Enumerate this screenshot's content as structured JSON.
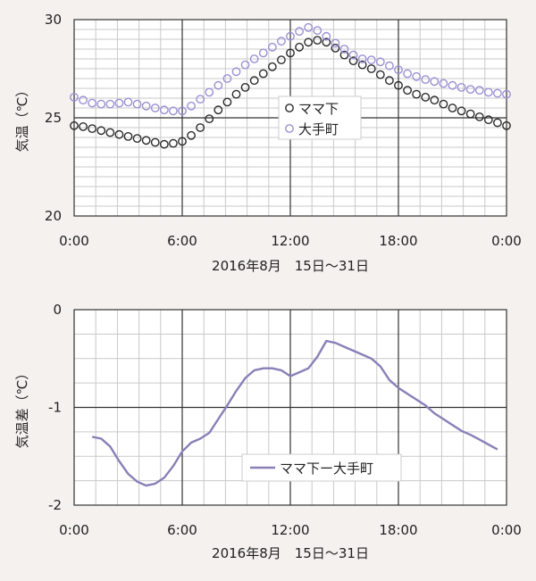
{
  "chart_data": [
    {
      "type": "scatter",
      "xlabel": "2016年8月　15日～31日",
      "ylabel": "気温（℃）",
      "xticks": [
        "0:00",
        "6:00",
        "12:00",
        "18:00",
        "0:00"
      ],
      "xlim": [
        0,
        24
      ],
      "ylim": [
        20,
        30
      ],
      "yticks": [
        20,
        25,
        30
      ],
      "grid": true,
      "legend": "center-right",
      "series": [
        {
          "name": "ママ下",
          "color": "#2a2a2a",
          "x": [
            0,
            0.5,
            1,
            1.5,
            2,
            2.5,
            3,
            3.5,
            4,
            4.5,
            5,
            5.5,
            6,
            6.5,
            7,
            7.5,
            8,
            8.5,
            9,
            9.5,
            10,
            10.5,
            11,
            11.5,
            12,
            12.5,
            13,
            13.5,
            14,
            14.5,
            15,
            15.5,
            16,
            16.5,
            17,
            17.5,
            18,
            18.5,
            19,
            19.5,
            20,
            20.5,
            21,
            21.5,
            22,
            22.5,
            23,
            23.5,
            24
          ],
          "y": [
            24.6,
            24.55,
            24.45,
            24.35,
            24.25,
            24.15,
            24.05,
            23.95,
            23.85,
            23.75,
            23.65,
            23.7,
            23.8,
            24.1,
            24.5,
            24.95,
            25.4,
            25.8,
            26.2,
            26.55,
            26.9,
            27.25,
            27.6,
            27.95,
            28.3,
            28.6,
            28.85,
            28.95,
            28.85,
            28.55,
            28.2,
            27.9,
            27.7,
            27.5,
            27.2,
            26.9,
            26.65,
            26.4,
            26.2,
            26.05,
            25.9,
            25.7,
            25.5,
            25.35,
            25.2,
            25.05,
            24.9,
            24.75,
            24.6
          ]
        },
        {
          "name": "大手町",
          "color": "#9b8fd4",
          "x": [
            0,
            0.5,
            1,
            1.5,
            2,
            2.5,
            3,
            3.5,
            4,
            4.5,
            5,
            5.5,
            6,
            6.5,
            7,
            7.5,
            8,
            8.5,
            9,
            9.5,
            10,
            10.5,
            11,
            11.5,
            12,
            12.5,
            13,
            13.5,
            14,
            14.5,
            15,
            15.5,
            16,
            16.5,
            17,
            17.5,
            18,
            18.5,
            19,
            19.5,
            20,
            20.5,
            21,
            21.5,
            22,
            22.5,
            23,
            23.5,
            24
          ],
          "y": [
            26.05,
            25.9,
            25.75,
            25.7,
            25.7,
            25.75,
            25.8,
            25.7,
            25.6,
            25.5,
            25.4,
            25.35,
            25.35,
            25.6,
            25.95,
            26.3,
            26.65,
            27.0,
            27.35,
            27.7,
            28.0,
            28.3,
            28.6,
            28.9,
            29.15,
            29.4,
            29.6,
            29.45,
            29.15,
            28.8,
            28.5,
            28.2,
            28.0,
            27.95,
            27.85,
            27.65,
            27.45,
            27.25,
            27.1,
            26.95,
            26.85,
            26.75,
            26.65,
            26.55,
            26.45,
            26.4,
            26.3,
            26.25,
            26.2
          ]
        }
      ]
    },
    {
      "type": "line",
      "xlabel": "2016年8月　15日～31日",
      "ylabel": "気温差（℃）",
      "xticks": [
        "0:00",
        "6:00",
        "12:00",
        "18:00",
        "0:00"
      ],
      "xlim": [
        0,
        24
      ],
      "ylim": [
        -2,
        0
      ],
      "yticks": [
        0,
        -1,
        -2
      ],
      "grid": true,
      "legend": "bottom-right",
      "series": [
        {
          "name": "ママ下ー大手町",
          "color": "#8a7fb8",
          "x": [
            1,
            1.5,
            2,
            2.5,
            3,
            3.5,
            4,
            4.5,
            5,
            5.5,
            6,
            6.5,
            7,
            7.5,
            8,
            8.5,
            9,
            9.5,
            10,
            10.5,
            11,
            11.5,
            12,
            12.5,
            13,
            13.5,
            14,
            14.5,
            15,
            15.5,
            16,
            16.5,
            17,
            17.5,
            18,
            18.5,
            19,
            19.5,
            20,
            20.5,
            21,
            21.5,
            22,
            22.5,
            23,
            23.5
          ],
          "y": [
            -1.3,
            -1.32,
            -1.4,
            -1.55,
            -1.68,
            -1.76,
            -1.8,
            -1.78,
            -1.72,
            -1.6,
            -1.45,
            -1.36,
            -1.32,
            -1.26,
            -1.12,
            -0.98,
            -0.83,
            -0.7,
            -0.62,
            -0.6,
            -0.6,
            -0.62,
            -0.68,
            -0.64,
            -0.6,
            -0.48,
            -0.32,
            -0.34,
            -0.38,
            -0.42,
            -0.46,
            -0.5,
            -0.58,
            -0.72,
            -0.8,
            -0.86,
            -0.92,
            -0.98,
            -1.06,
            -1.12,
            -1.18,
            -1.24,
            -1.28,
            -1.33,
            -1.38,
            -1.43
          ]
        }
      ]
    }
  ]
}
